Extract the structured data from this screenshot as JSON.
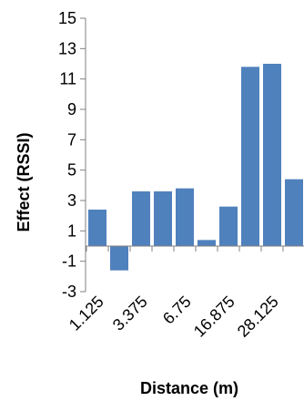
{
  "chart_data": {
    "type": "bar",
    "title": "",
    "xlabel": "Distance (m)",
    "ylabel": "Effect (RSSI)",
    "ylim": [
      -3,
      15
    ],
    "yticks": [
      -3,
      -1,
      1,
      3,
      5,
      7,
      9,
      11,
      13,
      15
    ],
    "grid": false,
    "legend": "none",
    "bar_color": "#4f81bd",
    "axis_color": "#808080",
    "values": [
      2.4,
      -1.6,
      3.6,
      3.6,
      3.8,
      0.4,
      2.6,
      11.8,
      12.0,
      4.4
    ],
    "categories": [
      "",
      "",
      "",
      "",
      "",
      "",
      "",
      "",
      "",
      ""
    ],
    "visible_tick_labels": [
      "1.125",
      "3.375",
      "6.75",
      "16.875",
      "28.125"
    ],
    "visible_tick_label_positions": [
      0,
      2,
      4,
      6,
      8
    ]
  }
}
